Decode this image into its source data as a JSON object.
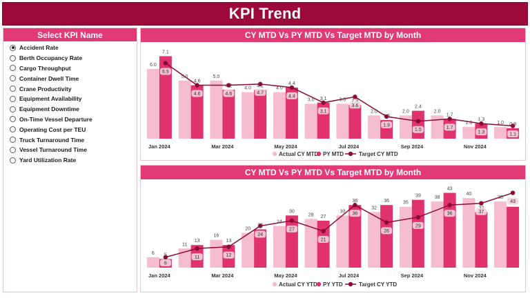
{
  "header": {
    "title": "KPI Trend"
  },
  "slicer": {
    "title": "Select KPI Name",
    "selected": "Accident Rate",
    "items": [
      "Accident Rate",
      "Berth Occupancy Rate",
      "Cargo Throughput",
      "Container Dwell Time",
      "Crane Productivity",
      "Equipment Availability",
      "Equipment Downtime",
      "On-Time Vessel Departure",
      "Operating Cost per TEU",
      "Truck Turnaround Time",
      "Vessel Turnaround Time",
      "Yard Utilization Rate"
    ]
  },
  "colors": {
    "actual": "#f6bcd0",
    "py": "#e0336d",
    "target": "#8c0a38",
    "header": "#9c0a3c",
    "accent": "#e13a76"
  },
  "chart_data": [
    {
      "type": "bar",
      "title": "CY MTD Vs PY MTD Vs Target MTD by Month",
      "categories": [
        "Jan 2024",
        "Feb 2024",
        "Mar 2024",
        "Apr 2024",
        "May 2024",
        "Jun 2024",
        "Jul 2024",
        "Aug 2024",
        "Sep 2024",
        "Oct 2024",
        "Nov 2024",
        "Dec 2024"
      ],
      "tick_labels": [
        "Jan 2024",
        "",
        "Mar 2024",
        "",
        "May 2024",
        "",
        "Jul 2024",
        "",
        "Sep 2024",
        "",
        "Nov 2024",
        ""
      ],
      "series": [
        {
          "name": "Actual CY MTD",
          "kind": "bar",
          "values": [
            6.0,
            5.0,
            5.0,
            4.0,
            4.0,
            3.0,
            3.0,
            2.0,
            2.0,
            2.0,
            1.0,
            1.0
          ]
        },
        {
          "name": "PY MTD",
          "kind": "bar",
          "values": [
            7.1,
            4.6,
            4.2,
            4.2,
            4.4,
            3.1,
            2.9,
            1.6,
            2.4,
            1.7,
            1.3,
            0.9
          ]
        },
        {
          "name": "Target CY MTD",
          "kind": "line",
          "values": [
            6.5,
            4.6,
            4.6,
            4.7,
            4.4,
            3.1,
            3.6,
            1.9,
            1.5,
            1.7,
            1.3,
            1.1
          ]
        }
      ],
      "ylim": [
        0,
        7.6
      ]
    },
    {
      "type": "bar",
      "title": "CY MTD Vs PY MTD Vs Target MTD by Month",
      "categories": [
        "Jan 2024",
        "Feb 2024",
        "Mar 2024",
        "Apr 2024",
        "May 2024",
        "Jun 2024",
        "Jul 2024",
        "Aug 2024",
        "Sep 2024",
        "Oct 2024",
        "Nov 2024",
        "Dec 2024"
      ],
      "tick_labels": [
        "Jan 2024",
        "",
        "Mar 2024",
        "",
        "May 2024",
        "",
        "Jul 2024",
        "",
        "Sep 2024",
        "",
        "Nov 2024",
        ""
      ],
      "series": [
        {
          "name": "Actual CY YTD",
          "kind": "bar",
          "values": [
            6,
            11,
            16,
            20,
            24,
            28,
            30,
            32,
            35,
            38,
            40,
            38
          ]
        },
        {
          "name": "PY YTD",
          "kind": "bar",
          "values": [
            5,
            13,
            13,
            22,
            30,
            27,
            36,
            36,
            39,
            43,
            32,
            35
          ]
        },
        {
          "name": "Target CY YTD",
          "kind": "line",
          "values": [
            6,
            11,
            12,
            24,
            27,
            21,
            36,
            26,
            29,
            36,
            37,
            43
          ]
        }
      ],
      "ylim": [
        0,
        46
      ]
    }
  ]
}
